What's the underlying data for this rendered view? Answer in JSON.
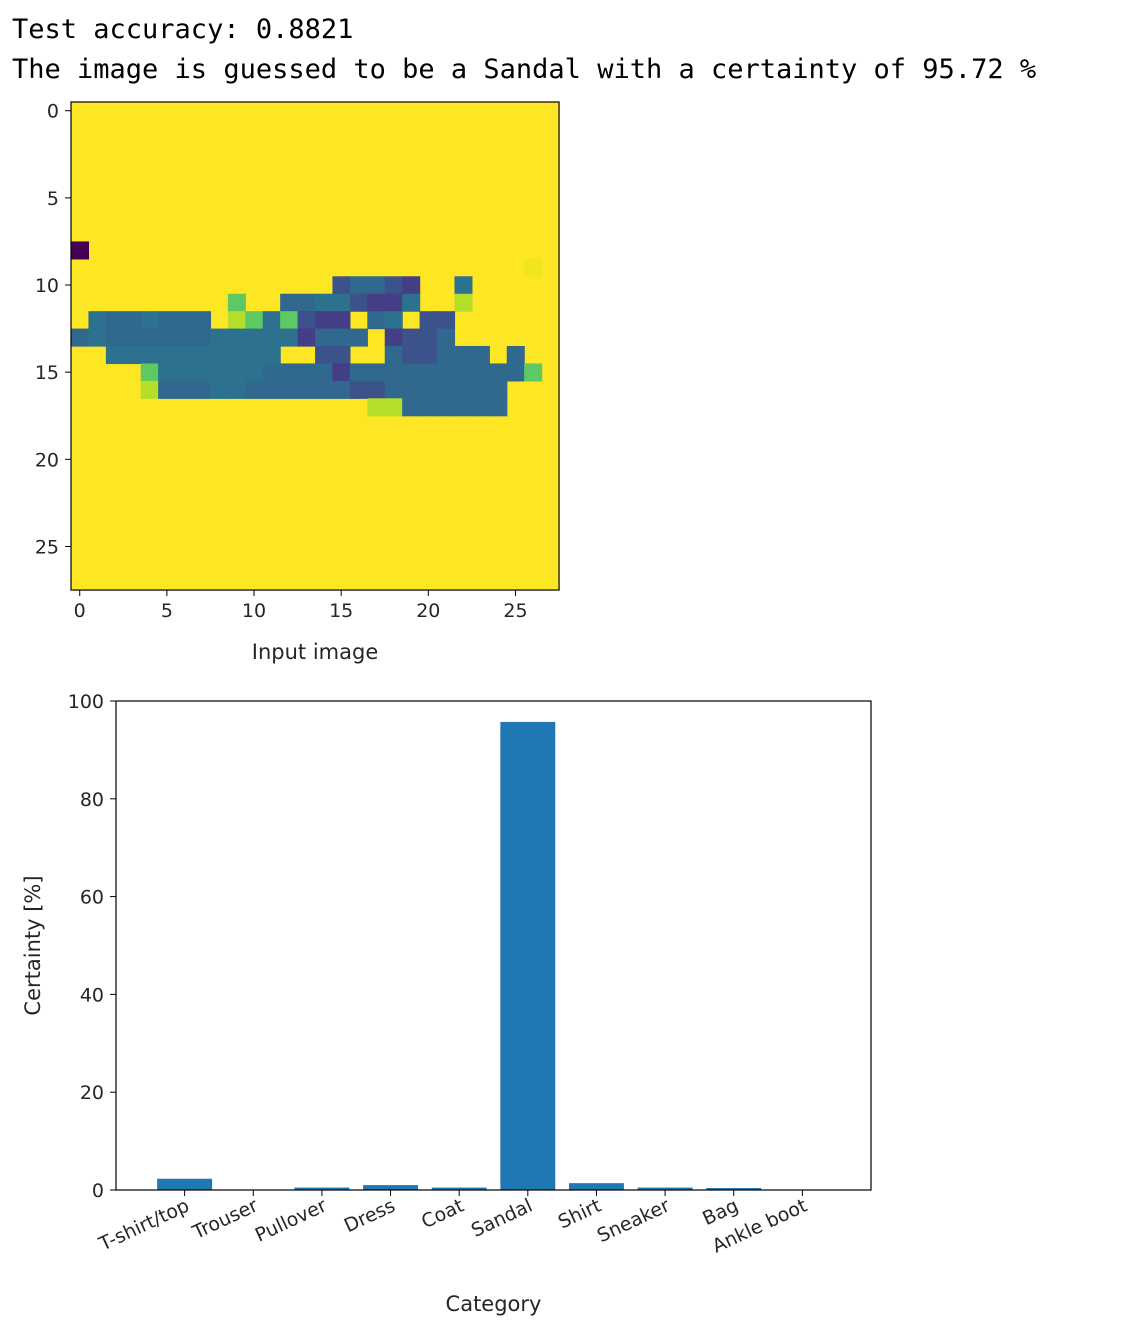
{
  "output": {
    "line1": "Test accuracy: 0.8821",
    "line2": "The image is guessed to be a Sandal with a certainty of 95.72 %"
  },
  "chart_data": [
    {
      "type": "heatmap",
      "xlabel": "Input image",
      "colormap": "viridis",
      "shape": [
        28,
        28
      ],
      "xticks": [
        0,
        5,
        10,
        15,
        20,
        25
      ],
      "yticks": [
        0,
        5,
        10,
        15,
        20,
        25
      ],
      "rows": [
        "",
        "",
        "",
        "",
        "",
        "",
        "",
        "",
        "0...........................",
        "..........................1.",
        "...............56654..7.....",
        ".........8..667754473.9.....",
        ".7667666.9878544367.55......",
        "6766666677777466624556......",
        "..7777777777..55..655666.6..",
        "....87777776666466666666668.",
        "....966677666666556666666...",
        ".................99666666...",
        "............................",
        "............................",
        "............................",
        "............................",
        "............................",
        "............................",
        "............................",
        "............................",
        "............................",
        "............................"
      ]
    },
    {
      "type": "bar",
      "xlabel": "Category",
      "ylabel": "Certainty [%]",
      "categories": [
        "T-shirt/top",
        "Trouser",
        "Pullover",
        "Dress",
        "Coat",
        "Sandal",
        "Shirt",
        "Sneaker",
        "Bag",
        "Ankle boot"
      ],
      "values": [
        2.3,
        0.1,
        0.5,
        1.0,
        0.5,
        95.72,
        1.4,
        0.5,
        0.4,
        0.1
      ],
      "ylim": [
        0,
        100
      ],
      "yticks": [
        0,
        20,
        40,
        60,
        80,
        100
      ],
      "bar_color": "#1f77b4"
    }
  ]
}
